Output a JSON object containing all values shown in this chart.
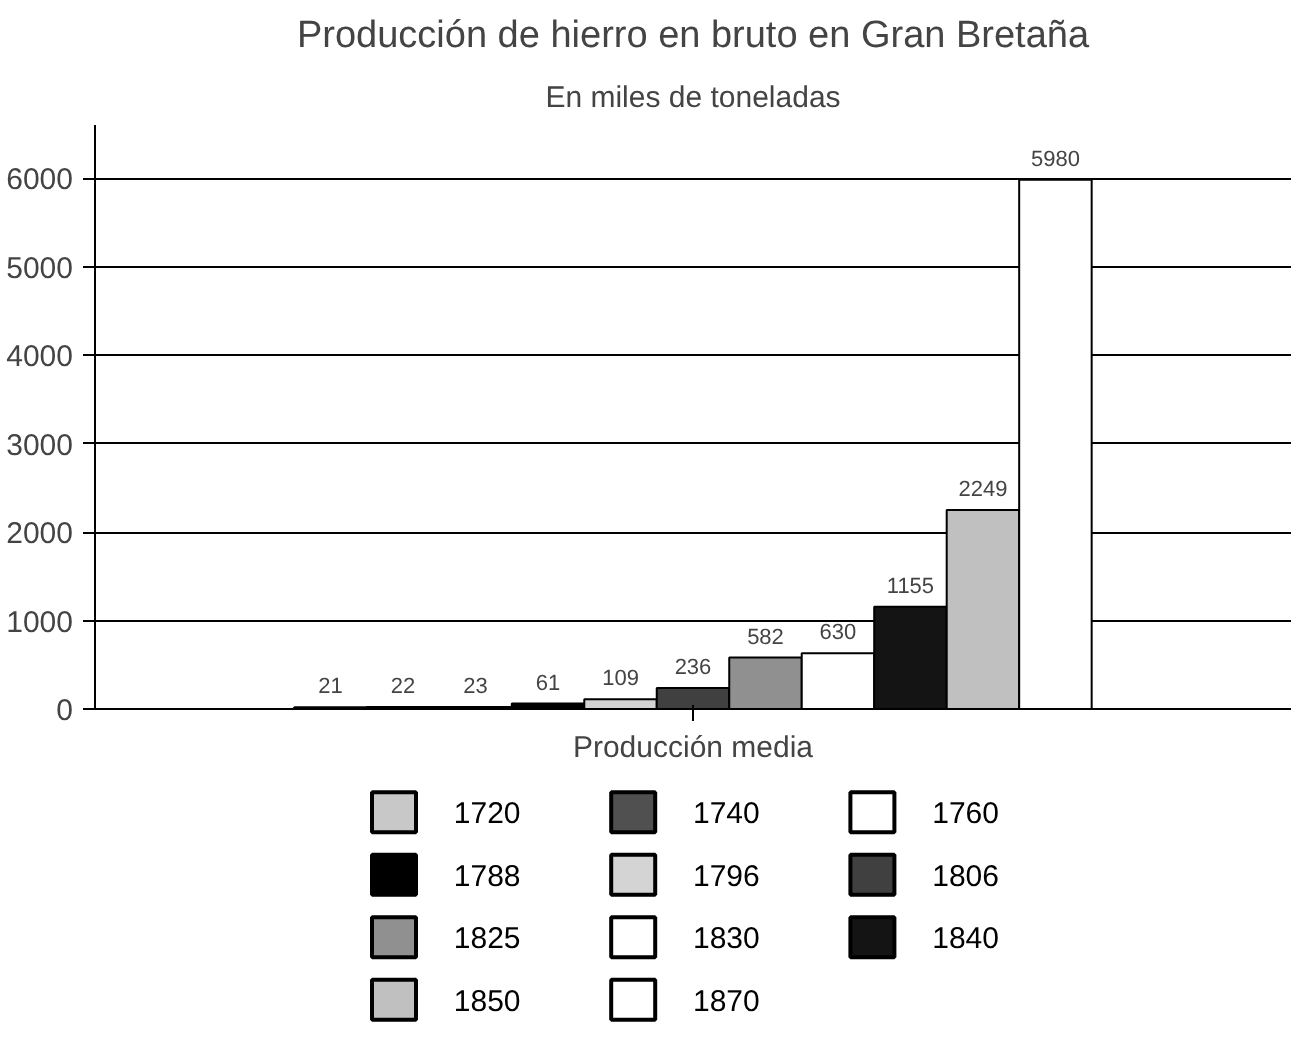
{
  "chart_data": {
    "type": "bar",
    "title": "Producción de hierro en bruto en Gran Bretaña",
    "subtitle": "En miles de toneladas",
    "categories": [
      "Producción media"
    ],
    "series": [
      {
        "name": "1720",
        "color": "#c8c8c8",
        "values": [
          21
        ]
      },
      {
        "name": "1740",
        "color": "#505050",
        "values": [
          22
        ]
      },
      {
        "name": "1760",
        "color": "#ffffff",
        "values": [
          23
        ]
      },
      {
        "name": "1788",
        "color": "#000000",
        "values": [
          61
        ]
      },
      {
        "name": "1796",
        "color": "#d4d4d4",
        "values": [
          109
        ]
      },
      {
        "name": "1806",
        "color": "#404040",
        "values": [
          236
        ]
      },
      {
        "name": "1825",
        "color": "#909090",
        "values": [
          582
        ]
      },
      {
        "name": "1830",
        "color": "#ffffff",
        "values": [
          630
        ]
      },
      {
        "name": "1840",
        "color": "#141414",
        "values": [
          1155
        ]
      },
      {
        "name": "1850",
        "color": "#c0c0c0",
        "values": [
          2249
        ]
      },
      {
        "name": "1870",
        "color": "#ffffff",
        "values": [
          5980
        ]
      }
    ],
    "ylim": [
      0,
      6600
    ],
    "yticks": [
      0,
      1000,
      2000,
      3000,
      4000,
      5000,
      6000
    ],
    "grid": "y",
    "legend": "bottom",
    "data_labels": true
  }
}
